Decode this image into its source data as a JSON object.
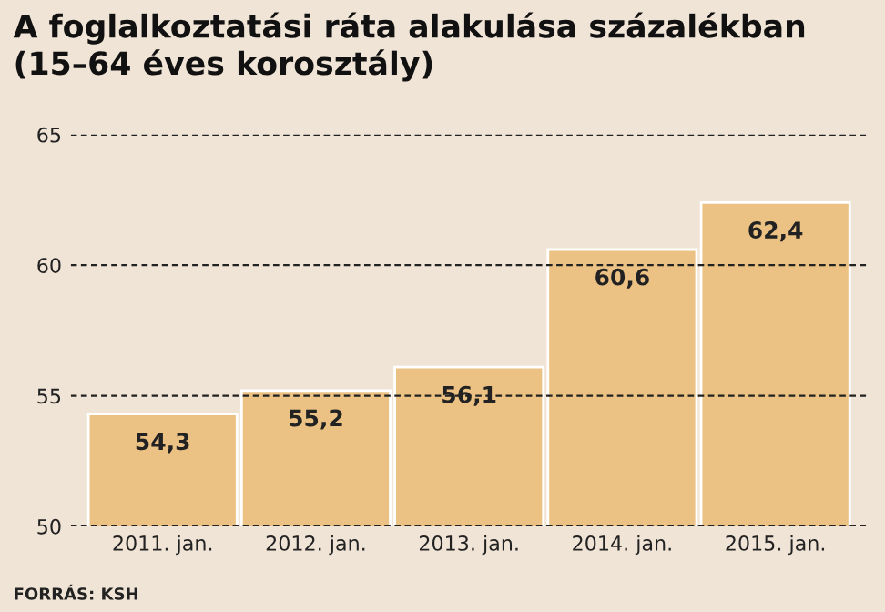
{
  "chart_data": {
    "type": "bar",
    "title": "A foglalkoztatási ráta alakulása százalékban\n(15–64 éves korosztály)",
    "categories": [
      "2011. jan.",
      "2012. jan.",
      "2013. jan.",
      "2014. jan.",
      "2015. jan."
    ],
    "values": [
      54.3,
      55.2,
      56.1,
      60.6,
      62.4
    ],
    "value_labels": [
      "54,3",
      "55,2",
      "56,1",
      "60,6",
      "62,4"
    ],
    "color": "#ebc283",
    "ylim": [
      50,
      65
    ],
    "yticks": [
      50,
      55,
      60,
      65
    ],
    "grid": "y",
    "annotations": [
      "FORRÁS: KSH"
    ]
  }
}
